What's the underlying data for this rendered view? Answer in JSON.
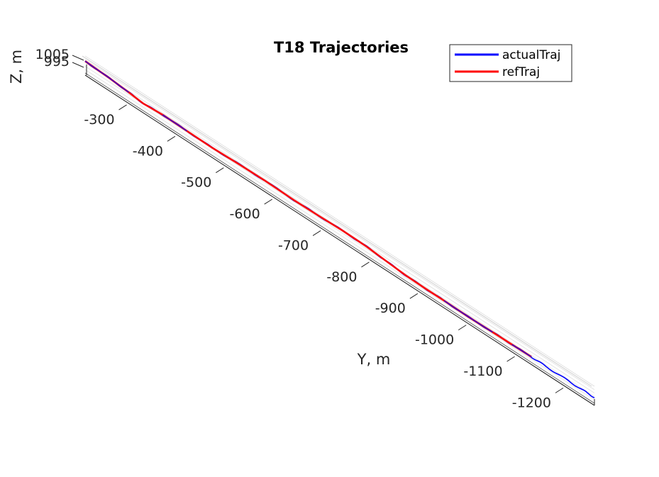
{
  "chart_data": {
    "type": "line",
    "title": "T18 Trajectories",
    "ylabel": "Y, m",
    "zlabel": "Z, m",
    "y_ticks": [
      "-300",
      "-400",
      "-500",
      "-600",
      "-700",
      "-800",
      "-900",
      "-1000",
      "-1100",
      "-1200"
    ],
    "z_ticks": [
      "1005",
      "995"
    ],
    "ylim": [
      -1260,
      -210
    ],
    "zlim": [
      990,
      1010
    ],
    "legend": {
      "position": "top-right",
      "entries": [
        "actualTraj",
        "refTraj"
      ]
    },
    "grid": true,
    "colors": {
      "actualTraj": "#0000ff",
      "refTraj": "#ff0000",
      "box": "#262626",
      "grid": "#dcdcdc"
    },
    "series": [
      {
        "name": "actualTraj",
        "y": [
          -210,
          -260,
          -300,
          -330,
          -370,
          -420,
          -470,
          -520,
          -580,
          -640,
          -690,
          -740,
          -790,
          -830,
          -870,
          -910,
          -950,
          -1000,
          -1050,
          -1090,
          -1130,
          -1160,
          -1200,
          -1235,
          -1260
        ],
        "z": [
          1004,
          1002.5,
          1000.5,
          998.5,
          1000,
          999.5,
          999,
          1000,
          1000.5,
          999.8,
          1000.2,
          1001,
          1000.5,
          998.5,
          996.5,
          996,
          996,
          995.5,
          996,
          996.2,
          996.5,
          996.3,
          996.5,
          996.6,
          996.8
        ]
      },
      {
        "name": "refTraj",
        "y": [
          -210,
          -260,
          -300,
          -330,
          -370,
          -420,
          -470,
          -520,
          -580,
          -640,
          -690,
          -740,
          -790,
          -830,
          -870,
          -910,
          -950,
          -1000,
          -1050,
          -1090,
          -1130
        ],
        "z": [
          1004,
          1002.5,
          1000.5,
          998.5,
          1000,
          999.5,
          999,
          1000,
          1000.5,
          999.8,
          1000.2,
          1001,
          1000.5,
          998.5,
          996.5,
          996,
          996,
          995.5,
          996,
          996.2,
          996.5
        ]
      }
    ]
  }
}
